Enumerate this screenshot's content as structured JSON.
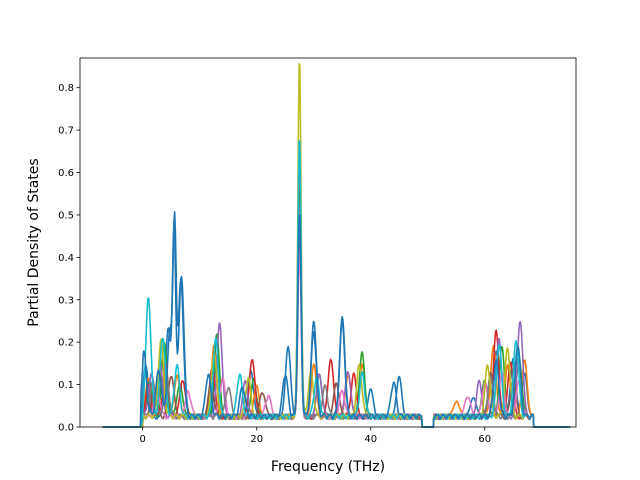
{
  "chart_data": {
    "type": "line",
    "xlabel": "Frequency (THz)",
    "ylabel": "Partial Density of States",
    "xlim": [
      -11,
      76
    ],
    "ylim": [
      0.0,
      0.87
    ],
    "xticks": [
      0,
      20,
      40,
      60
    ],
    "xtick_labels": [
      "0",
      "20",
      "40",
      "60"
    ],
    "yticks": [
      0.0,
      0.1,
      0.2,
      0.3,
      0.4,
      0.5,
      0.6,
      0.7,
      0.8
    ],
    "ytick_labels": [
      "0.0",
      "0.1",
      "0.2",
      "0.3",
      "0.4",
      "0.5",
      "0.6",
      "0.7",
      "0.8"
    ],
    "grid": false,
    "legend": "none",
    "series": [
      {
        "color": "#1f77b4",
        "peaks": [
          [
            0.5,
            0.12
          ],
          [
            4.5,
            0.21
          ],
          [
            5.5,
            0.43
          ],
          [
            6.8,
            0.33
          ],
          [
            13,
            0.14
          ],
          [
            19,
            0.11
          ],
          [
            25.5,
            0.16
          ],
          [
            27.5,
            0.5
          ],
          [
            30,
            0.22
          ],
          [
            35,
            0.23
          ],
          [
            40,
            0.06
          ],
          [
            45,
            0.09
          ],
          [
            58,
            0.05
          ],
          [
            62,
            0.15
          ],
          [
            65,
            0.14
          ],
          [
            67,
            0.1
          ]
        ]
      },
      {
        "color": "#ff7f0e",
        "peaks": [
          [
            1,
            0.09
          ],
          [
            3.5,
            0.14
          ],
          [
            6,
            0.1
          ],
          [
            12.5,
            0.17
          ],
          [
            20,
            0.07
          ],
          [
            27.5,
            0.65
          ],
          [
            30,
            0.12
          ],
          [
            36,
            0.1
          ],
          [
            38.5,
            0.12
          ],
          [
            55,
            0.04
          ],
          [
            61.5,
            0.17
          ],
          [
            64,
            0.12
          ],
          [
            67,
            0.13
          ]
        ]
      },
      {
        "color": "#2ca02c",
        "peaks": [
          [
            1.2,
            0.08
          ],
          [
            3.8,
            0.17
          ],
          [
            6.5,
            0.08
          ],
          [
            13,
            0.19
          ],
          [
            19.5,
            0.09
          ],
          [
            27.5,
            0.55
          ],
          [
            31,
            0.1
          ],
          [
            38.5,
            0.15
          ],
          [
            60,
            0.09
          ],
          [
            63,
            0.16
          ],
          [
            66,
            0.14
          ]
        ]
      },
      {
        "color": "#d62728",
        "peaks": [
          [
            1,
            0.07
          ],
          [
            4,
            0.12
          ],
          [
            7,
            0.09
          ],
          [
            12.2,
            0.12
          ],
          [
            19.2,
            0.14
          ],
          [
            27.5,
            0.65
          ],
          [
            33,
            0.14
          ],
          [
            37,
            0.1
          ],
          [
            62,
            0.2
          ],
          [
            64.5,
            0.13
          ]
        ]
      },
      {
        "color": "#9467bd",
        "peaks": [
          [
            1.5,
            0.1
          ],
          [
            3,
            0.13
          ],
          [
            13.5,
            0.22
          ],
          [
            18,
            0.08
          ],
          [
            27.5,
            0.5
          ],
          [
            31,
            0.1
          ],
          [
            36,
            0.11
          ],
          [
            59,
            0.08
          ],
          [
            62.5,
            0.18
          ],
          [
            66.2,
            0.23
          ]
        ]
      },
      {
        "color": "#8c564b",
        "peaks": [
          [
            2,
            0.06
          ],
          [
            5,
            0.1
          ],
          [
            12,
            0.08
          ],
          [
            21,
            0.06
          ],
          [
            27.5,
            0.45
          ],
          [
            34,
            0.08
          ],
          [
            61,
            0.1
          ],
          [
            65,
            0.09
          ]
        ]
      },
      {
        "color": "#e377c2",
        "peaks": [
          [
            2.5,
            0.07
          ],
          [
            8,
            0.06
          ],
          [
            14,
            0.09
          ],
          [
            22,
            0.05
          ],
          [
            27.5,
            0.4
          ],
          [
            35,
            0.06
          ],
          [
            57,
            0.05
          ],
          [
            60,
            0.08
          ],
          [
            63,
            0.1
          ],
          [
            66,
            0.08
          ]
        ]
      },
      {
        "color": "#7f7f7f",
        "peaks": [
          [
            1.8,
            0.08
          ],
          [
            4.2,
            0.09
          ],
          [
            15,
            0.07
          ],
          [
            27.5,
            0.5
          ],
          [
            32,
            0.07
          ],
          [
            61,
            0.09
          ]
        ]
      },
      {
        "color": "#bcbd22",
        "peaks": [
          [
            3.2,
            0.18
          ],
          [
            12.5,
            0.15
          ],
          [
            18.5,
            0.09
          ],
          [
            27.5,
            0.85
          ],
          [
            29.5,
            0.1
          ],
          [
            38,
            0.12
          ],
          [
            60.5,
            0.12
          ],
          [
            64,
            0.16
          ]
        ]
      },
      {
        "color": "#17becf",
        "peaks": [
          [
            1,
            0.28
          ],
          [
            3.5,
            0.19
          ],
          [
            6,
            0.12
          ],
          [
            12.8,
            0.18
          ],
          [
            17,
            0.1
          ],
          [
            27.5,
            0.66
          ],
          [
            30.5,
            0.09
          ],
          [
            38.5,
            0.1
          ],
          [
            62.5,
            0.17
          ],
          [
            65.5,
            0.18
          ]
        ]
      },
      {
        "color": "#1f77b4",
        "peaks": [
          [
            0.2,
            0.15
          ],
          [
            2.8,
            0.11
          ],
          [
            4.8,
            0.2
          ],
          [
            5.6,
            0.42
          ],
          [
            6.7,
            0.32
          ],
          [
            11.5,
            0.1
          ],
          [
            17.5,
            0.07
          ],
          [
            25,
            0.1
          ],
          [
            27.5,
            0.48
          ],
          [
            30,
            0.2
          ],
          [
            35,
            0.22
          ],
          [
            44,
            0.08
          ],
          [
            62,
            0.13
          ],
          [
            65.8,
            0.17
          ]
        ]
      }
    ]
  }
}
